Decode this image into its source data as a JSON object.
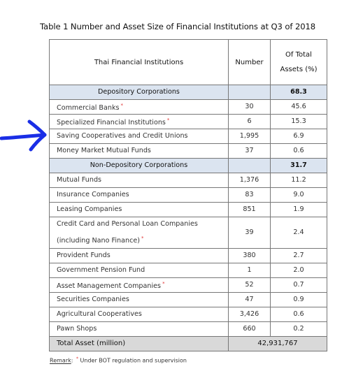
{
  "title": "Table 1 Number and Asset Size of Financial Institutions at Q3 of 2018",
  "header": {
    "institutions": "Thai Financial Institutions",
    "number": "Number",
    "pct": "Of Total Assets (%)"
  },
  "depository": {
    "name": "Depository Corporations",
    "pct": "68.3",
    "rows": [
      {
        "name": "Commercial Banks",
        "number": "30",
        "pct": "45.6",
        "star": "*"
      },
      {
        "name": "Specialized Financial Institutions",
        "number": "6",
        "pct": "15.3",
        "star": "*"
      },
      {
        "name": "Saving Cooperatives and Credit Unions",
        "number": "1,995",
        "pct": "6.9",
        "star": ""
      },
      {
        "name": "Money Market Mutual Funds",
        "number": "37",
        "pct": "0.6",
        "star": ""
      }
    ]
  },
  "non_depository": {
    "name": "Non-Depository Corporations",
    "pct": "31.7",
    "rows": [
      {
        "name": "Mutual Funds",
        "number": "1,376",
        "pct": "11.2",
        "star": ""
      },
      {
        "name": "Insurance Companies",
        "number": "83",
        "pct": "9.0",
        "star": ""
      },
      {
        "name": "Leasing Companies",
        "number": "851",
        "pct": "1.9",
        "star": ""
      },
      {
        "name": "Credit Card and Personal Loan Companies (including Nano Finance)",
        "number": "39",
        "pct": "2.4",
        "star": "*"
      },
      {
        "name": "Provident Funds",
        "number": "380",
        "pct": "2.7",
        "star": ""
      },
      {
        "name": "Government Pension Fund",
        "number": "1",
        "pct": "2.0",
        "star": ""
      },
      {
        "name": "Asset Management Companies",
        "number": "52",
        "pct": "0.7",
        "star": "*"
      },
      {
        "name": "Securities Companies",
        "number": "47",
        "pct": "0.9",
        "star": ""
      },
      {
        "name": "Agricultural Cooperatives",
        "number": "3,426",
        "pct": "0.6",
        "star": ""
      },
      {
        "name": "Pawn Shops",
        "number": "660",
        "pct": "0.2",
        "star": ""
      }
    ]
  },
  "total": {
    "label": "Total Asset (million)",
    "value": "42,931,767"
  },
  "remark": {
    "label": "Remark",
    "star": "*",
    "text": "Under BOT regulation and supervision"
  },
  "annotation": {
    "icon": "hand-drawn-arrow-icon",
    "color": "#1a2ee6"
  }
}
